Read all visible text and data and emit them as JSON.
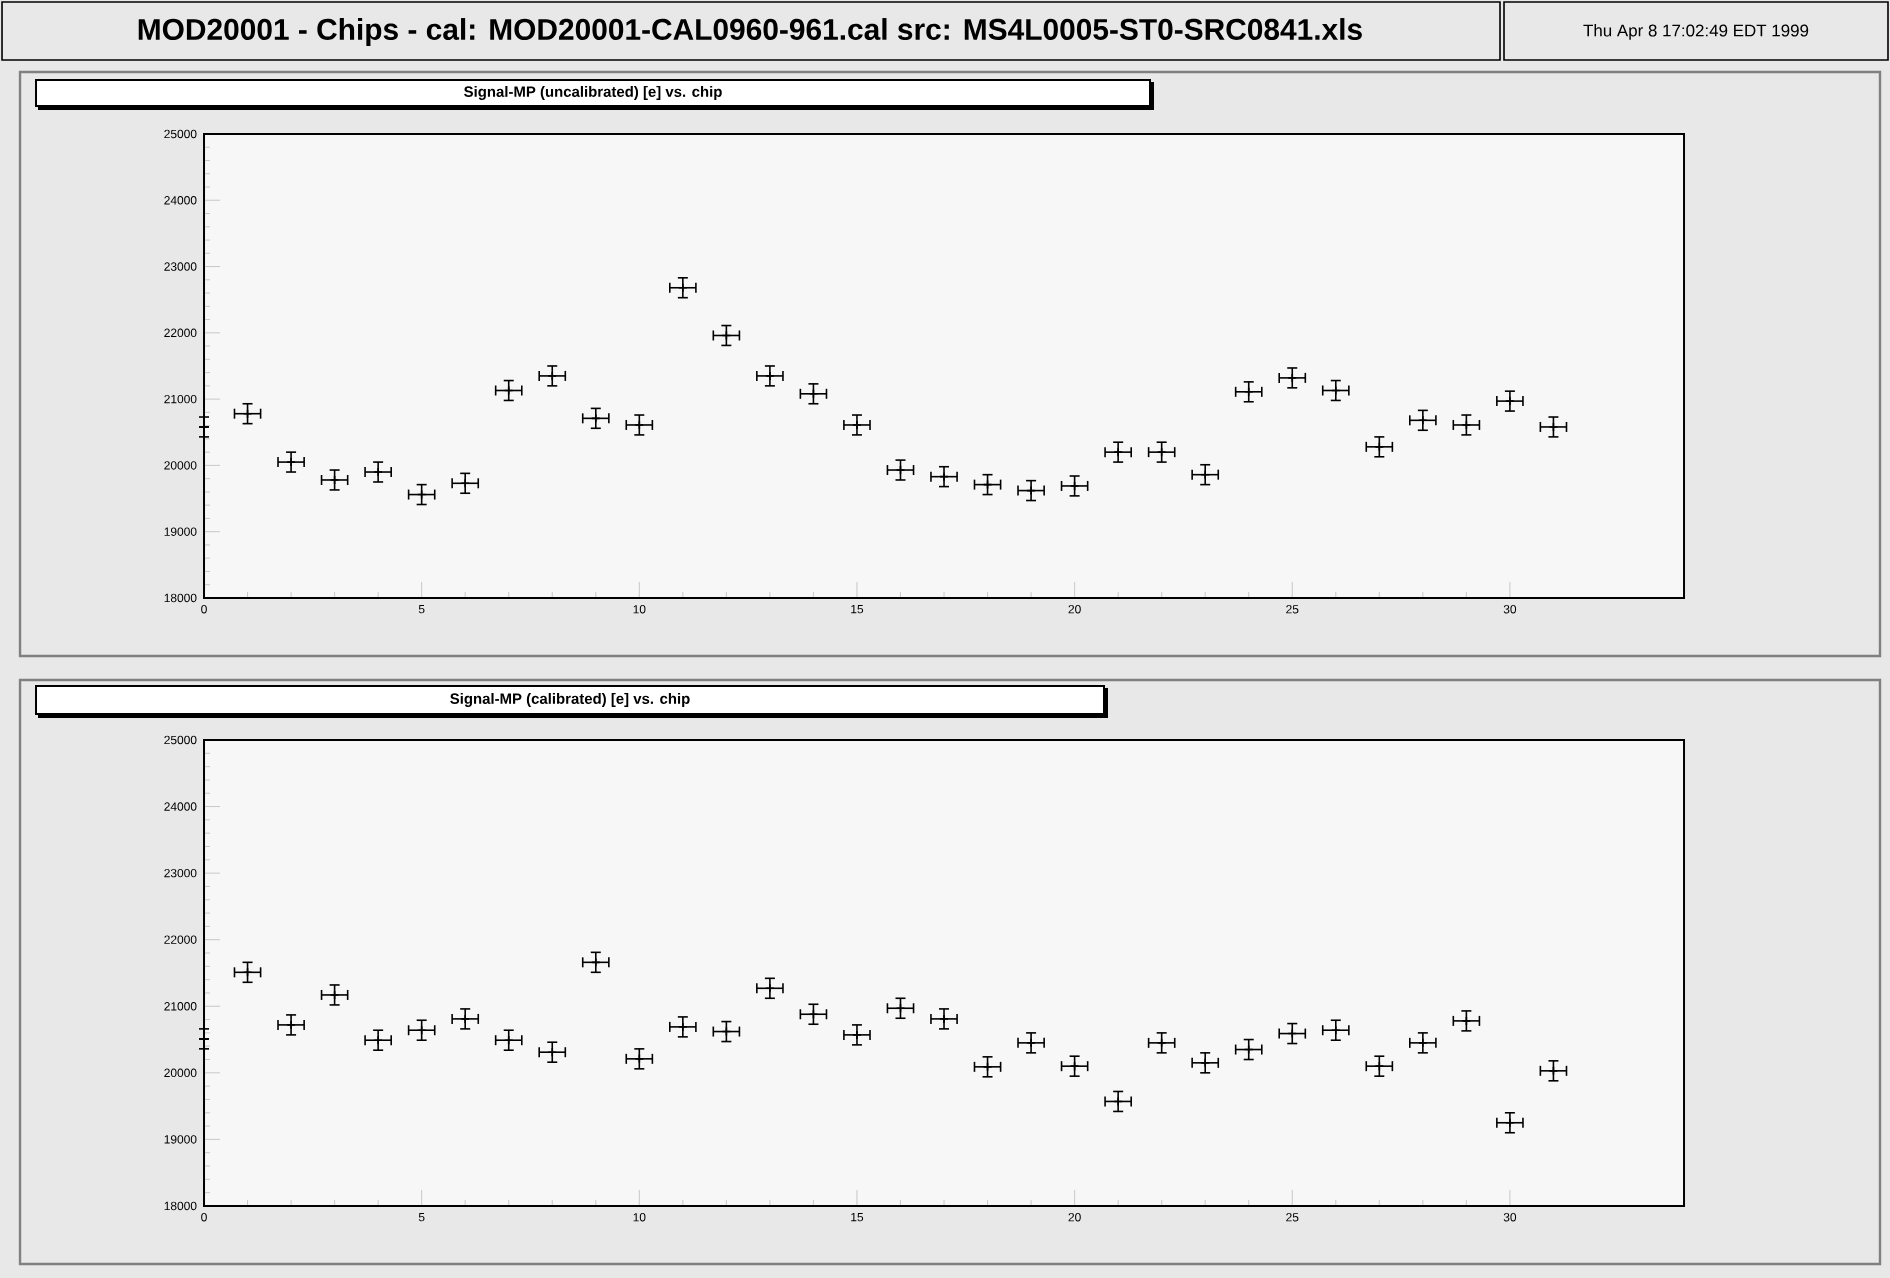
{
  "chart_data": [
    {
      "type": "scatter",
      "title": "Signal-MP (uncalibrated) [e] vs. chip",
      "color": "#000000",
      "marker": "cross",
      "annotations": [
        "MOD20001 - Chips - cal: MOD20001-CAL0960-961.cal   src: MS4L0005-ST0-SRC0841.xls",
        "Thu Apr  8 17:02:49 EDT 1999"
      ],
      "x": [
        0,
        1,
        2,
        3,
        4,
        5,
        6,
        7,
        8,
        9,
        10,
        11,
        12,
        13,
        14,
        15,
        16,
        17,
        18,
        19,
        20,
        21,
        22,
        23,
        24,
        25,
        26,
        27,
        28,
        29,
        30,
        31
      ],
      "values": [
        20580,
        20780,
        20050,
        19780,
        19900,
        19560,
        19730,
        21130,
        21350,
        20710,
        20610,
        22680,
        21960,
        21350,
        21080,
        20610,
        19930,
        19830,
        19710,
        19620,
        19690,
        20200,
        20200,
        19860,
        21110,
        21320,
        21130,
        20280,
        20680,
        20610,
        20970,
        20580
      ],
      "errors": [
        150,
        150,
        150,
        150,
        150,
        150,
        150,
        150,
        150,
        150,
        150,
        150,
        150,
        150,
        150,
        150,
        150,
        150,
        150,
        150,
        150,
        150,
        150,
        150,
        150,
        150,
        150,
        150,
        150,
        150,
        150,
        150
      ],
      "xerrors": [
        null,
        0.3,
        0.3,
        0.3,
        0.3,
        0.3,
        0.3,
        0.3,
        0.3,
        0.3,
        0.3,
        0.3,
        0.3,
        0.3,
        0.3,
        0.3,
        0.3,
        0.3,
        0.3,
        0.3,
        0.3,
        0.3,
        0.3,
        0.3,
        0.3,
        0.3,
        0.3,
        0.3,
        0.3,
        0.3,
        0.3,
        0.3
      ],
      "xlim": [
        0,
        34
      ],
      "xticks": [
        0,
        5,
        10,
        15,
        20,
        25,
        30
      ],
      "ylim": [
        18000,
        25000
      ],
      "yticks": [
        18000,
        19000,
        20000,
        21000,
        22000,
        23000,
        24000,
        25000
      ]
    },
    {
      "type": "scatter",
      "title": "Signal-MP (calibrated) [e] vs. chip",
      "color": "#000000",
      "marker": "cross",
      "x": [
        0,
        1,
        2,
        3,
        4,
        5,
        6,
        7,
        8,
        9,
        10,
        11,
        12,
        13,
        14,
        15,
        16,
        17,
        18,
        19,
        20,
        21,
        22,
        23,
        24,
        25,
        26,
        27,
        28,
        29,
        30,
        31
      ],
      "values": [
        20510,
        21510,
        20720,
        21170,
        20490,
        20640,
        20810,
        20490,
        20310,
        21660,
        20210,
        20690,
        20620,
        21270,
        20880,
        20570,
        20970,
        20810,
        20090,
        20450,
        20100,
        19570,
        20450,
        20150,
        20350,
        20590,
        20640,
        20100,
        20450,
        20780,
        19250,
        20030
      ],
      "errors": [
        150,
        150,
        150,
        150,
        150,
        150,
        150,
        150,
        150,
        150,
        150,
        150,
        150,
        150,
        150,
        150,
        150,
        150,
        150,
        150,
        150,
        150,
        150,
        150,
        150,
        150,
        150,
        150,
        150,
        150,
        150,
        150
      ],
      "xerrors": [
        null,
        0.3,
        0.3,
        0.3,
        0.3,
        0.3,
        0.3,
        0.3,
        0.3,
        0.3,
        0.3,
        0.3,
        0.3,
        0.3,
        0.3,
        0.3,
        0.3,
        0.3,
        0.3,
        0.3,
        0.3,
        0.3,
        0.3,
        0.3,
        0.3,
        0.3,
        0.3,
        0.3,
        0.3,
        0.3,
        0.3,
        0.3
      ],
      "xlim": [
        0,
        34
      ],
      "xticks": [
        0,
        5,
        10,
        15,
        20,
        25,
        30
      ],
      "ylim": [
        18000,
        25000
      ],
      "yticks": [
        18000,
        19000,
        20000,
        21000,
        22000,
        23000,
        24000,
        25000
      ]
    }
  ]
}
